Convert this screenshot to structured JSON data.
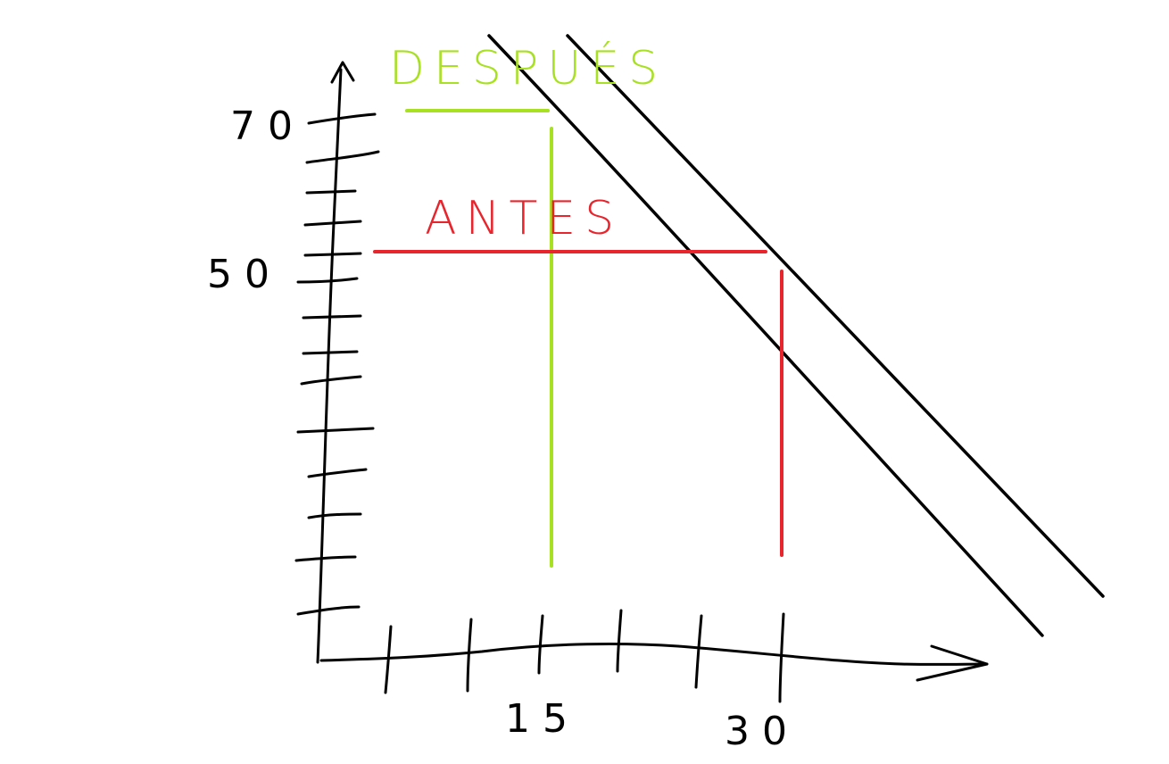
{
  "labels": {
    "y_tick_70": "70",
    "y_tick_50": "50",
    "x_tick_15": "15",
    "x_tick_30": "30",
    "despues": "DESPUÉS",
    "antes": "ANTES"
  },
  "colors": {
    "ink": "#000000",
    "despues": "#a8e022",
    "antes": "#e8252d"
  }
}
